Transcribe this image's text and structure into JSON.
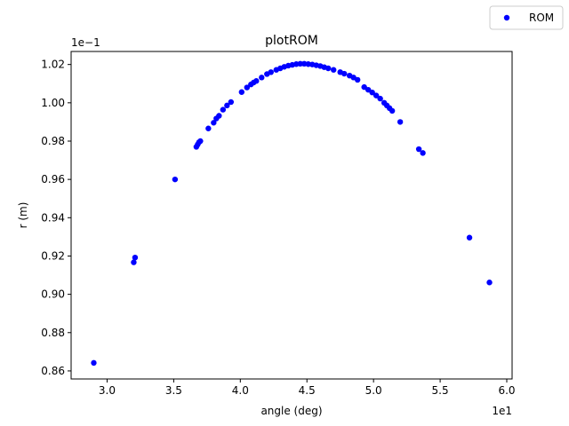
{
  "chart_data": {
    "type": "scatter",
    "title": "plotROM",
    "xlabel": "angle (deg)",
    "ylabel": "r (m)",
    "x_offset_label": "1e1",
    "y_offset_label": "1e−1",
    "xlim": [
      2.73,
      6.04
    ],
    "ylim": [
      0.8558,
      1.0268
    ],
    "xticks": [
      "3.0",
      "3.5",
      "4.0",
      "4.5",
      "5.0",
      "5.5",
      "6.0"
    ],
    "yticks": [
      "0.86",
      "0.88",
      "0.90",
      "0.92",
      "0.94",
      "0.96",
      "0.98",
      "1.00",
      "1.02"
    ],
    "legend_position": "top-right",
    "grid": false,
    "marker_color": "#0000ff",
    "series": [
      {
        "name": "ROM",
        "color": "#0000ff",
        "points": [
          [
            2.9,
            0.8642
          ],
          [
            3.2,
            0.9167
          ],
          [
            3.21,
            0.9192
          ],
          [
            3.51,
            0.96
          ],
          [
            3.67,
            0.977
          ],
          [
            3.68,
            0.9782
          ],
          [
            3.69,
            0.9794
          ],
          [
            3.7,
            0.98
          ],
          [
            3.76,
            0.9866
          ],
          [
            3.8,
            0.9896
          ],
          [
            3.82,
            0.9918
          ],
          [
            3.84,
            0.9932
          ],
          [
            3.87,
            0.9964
          ],
          [
            3.9,
            0.9986
          ],
          [
            3.93,
            1.0004
          ],
          [
            4.01,
            1.0056
          ],
          [
            4.05,
            1.008
          ],
          [
            4.08,
            1.0096
          ],
          [
            4.1,
            1.0106
          ],
          [
            4.12,
            1.0114
          ],
          [
            4.16,
            1.0132
          ],
          [
            4.2,
            1.015
          ],
          [
            4.23,
            1.016
          ],
          [
            4.27,
            1.0172
          ],
          [
            4.3,
            1.018
          ],
          [
            4.33,
            1.0188
          ],
          [
            4.36,
            1.0194
          ],
          [
            4.39,
            1.0198
          ],
          [
            4.42,
            1.0202
          ],
          [
            4.45,
            1.0204
          ],
          [
            4.48,
            1.0204
          ],
          [
            4.51,
            1.0202
          ],
          [
            4.54,
            1.02
          ],
          [
            4.57,
            1.0196
          ],
          [
            4.6,
            1.0192
          ],
          [
            4.63,
            1.0186
          ],
          [
            4.66,
            1.018
          ],
          [
            4.7,
            1.0172
          ],
          [
            4.75,
            1.016
          ],
          [
            4.78,
            1.0152
          ],
          [
            4.82,
            1.0142
          ],
          [
            4.85,
            1.0132
          ],
          [
            4.88,
            1.012
          ],
          [
            4.93,
            1.0082
          ],
          [
            4.96,
            1.0068
          ],
          [
            4.99,
            1.0054
          ],
          [
            5.02,
            1.0038
          ],
          [
            5.05,
            1.0022
          ],
          [
            5.08,
            1.0
          ],
          [
            5.1,
            0.9986
          ],
          [
            5.12,
            0.9972
          ],
          [
            5.14,
            0.9958
          ],
          [
            5.2,
            0.99
          ],
          [
            5.34,
            0.9758
          ],
          [
            5.37,
            0.9738
          ],
          [
            5.72,
            0.9296
          ],
          [
            5.87,
            0.9062
          ]
        ]
      }
    ]
  }
}
